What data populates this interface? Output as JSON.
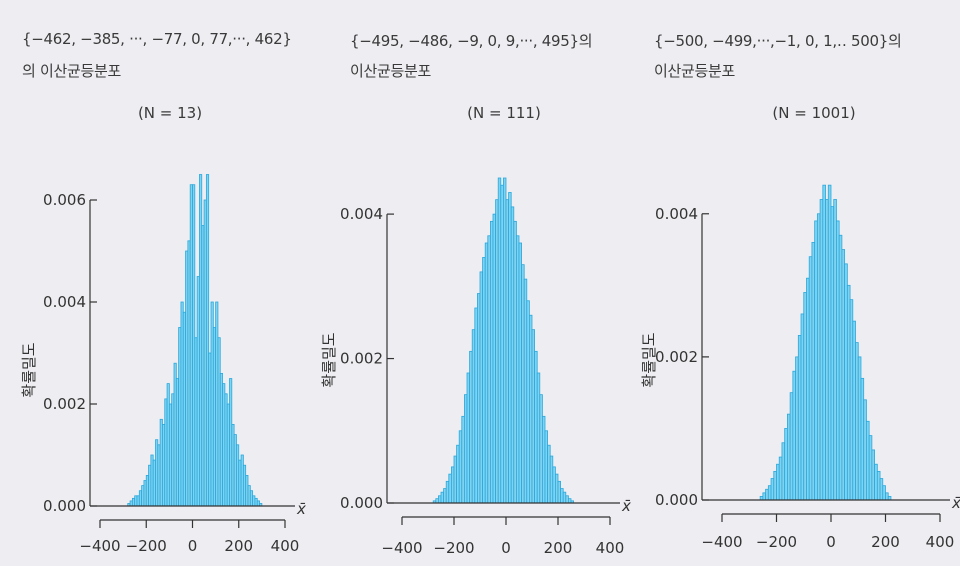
{
  "chart_data": [
    {
      "type": "bar",
      "title_line1": "{−462, −385, ···, −77, 0, 77,···, 462}",
      "title_line2": "의 이산균등분포",
      "subtitle": "(N = 13)",
      "ylabel": "확률밀도",
      "xlabel": "x̄",
      "ylim": [
        0,
        0.006
      ],
      "yticks": [
        "0.000",
        "0.002",
        "0.004",
        "0.006"
      ],
      "yticks_values": [
        0,
        0.002,
        0.004,
        0.006
      ],
      "xlim": [
        -400,
        400
      ],
      "xticks": [
        "−400",
        "−200",
        "0",
        "200",
        "400"
      ],
      "xticks_values": [
        -400,
        -200,
        0,
        200,
        400
      ],
      "bin_width": 10,
      "x_start": -280,
      "values": [
        5e-05,
        0.0001,
        0.00015,
        0.0002,
        0.0002,
        0.0003,
        0.0004,
        0.0005,
        0.0006,
        0.0008,
        0.001,
        0.0009,
        0.0013,
        0.0012,
        0.0017,
        0.0016,
        0.0021,
        0.0024,
        0.002,
        0.0022,
        0.0028,
        0.0025,
        0.0035,
        0.004,
        0.0038,
        0.005,
        0.0052,
        0.0063,
        0.0063,
        0.0033,
        0.0045,
        0.0065,
        0.0055,
        0.006,
        0.0065,
        0.003,
        0.004,
        0.0035,
        0.004,
        0.0033,
        0.0026,
        0.0024,
        0.0022,
        0.002,
        0.0025,
        0.0016,
        0.0014,
        0.0012,
        0.0009,
        0.001,
        0.0008,
        0.0006,
        0.0004,
        0.0003,
        0.0002,
        0.00015,
        0.0001,
        5e-05
      ]
    },
    {
      "type": "bar",
      "title_line1": "{−495, −486, −9, 0, 9,···, 495}의",
      "title_line2": "이산균등분포",
      "subtitle": "(N = 111)",
      "ylabel": "확률밀도",
      "xlabel": "x̄",
      "ylim": [
        0,
        0.0045
      ],
      "yticks": [
        "0.000",
        "0.002",
        "0.004"
      ],
      "yticks_values": [
        0,
        0.002,
        0.004
      ],
      "xlim": [
        -400,
        400
      ],
      "xticks": [
        "−400",
        "−200",
        "0",
        "200",
        "400"
      ],
      "xticks_values": [
        -400,
        -200,
        0,
        200,
        400
      ],
      "bin_width": 10,
      "x_start": -280,
      "values": [
        3e-05,
        6e-05,
        0.0001,
        0.00015,
        0.0002,
        0.0003,
        0.0004,
        0.0005,
        0.00065,
        0.0008,
        0.001,
        0.0012,
        0.0015,
        0.0018,
        0.0021,
        0.0024,
        0.0027,
        0.0029,
        0.0032,
        0.0034,
        0.0036,
        0.0037,
        0.0039,
        0.004,
        0.0042,
        0.0045,
        0.0044,
        0.0045,
        0.0042,
        0.0043,
        0.0041,
        0.0039,
        0.0037,
        0.0036,
        0.0033,
        0.0031,
        0.0028,
        0.0026,
        0.0024,
        0.0021,
        0.0018,
        0.0015,
        0.0012,
        0.001,
        0.0008,
        0.00065,
        0.0005,
        0.0004,
        0.0003,
        0.0002,
        0.00015,
        0.0001,
        6e-05,
        3e-05
      ]
    },
    {
      "type": "bar",
      "title_line1": "{−500, −499,···,−1, 0, 1,‥ 500}의",
      "title_line2": "이산균등분포",
      "subtitle": "(N = 1001)",
      "ylabel": "확률밀도",
      "xlabel": "x̄",
      "ylim": [
        0,
        0.0045
      ],
      "yticks": [
        "0.000",
        "0.002",
        "0.004"
      ],
      "yticks_values": [
        0,
        0.002,
        0.004
      ],
      "xlim": [
        -400,
        400
      ],
      "xticks": [
        "−400",
        "−200",
        "0",
        "200",
        "400"
      ],
      "xticks_values": [
        -400,
        -200,
        0,
        200,
        400
      ],
      "bin_width": 10,
      "x_start": -260,
      "values": [
        5e-05,
        0.0001,
        0.00015,
        0.0002,
        0.0003,
        0.0004,
        0.0005,
        0.0006,
        0.0008,
        0.001,
        0.0012,
        0.0015,
        0.0018,
        0.002,
        0.0023,
        0.0026,
        0.0029,
        0.0031,
        0.0034,
        0.0036,
        0.0039,
        0.004,
        0.0042,
        0.0044,
        0.0042,
        0.0044,
        0.0041,
        0.0042,
        0.0039,
        0.0037,
        0.0035,
        0.0033,
        0.003,
        0.0028,
        0.0025,
        0.0022,
        0.002,
        0.0017,
        0.0014,
        0.0011,
        0.0009,
        0.0007,
        0.0005,
        0.0004,
        0.0003,
        0.0002,
        0.0001,
        5e-05
      ]
    }
  ],
  "colors": {
    "bar_fill": "#7fd3f0",
    "bar_stroke": "#2aa8dc",
    "axis": "#333333",
    "background": "#eeeef2"
  }
}
